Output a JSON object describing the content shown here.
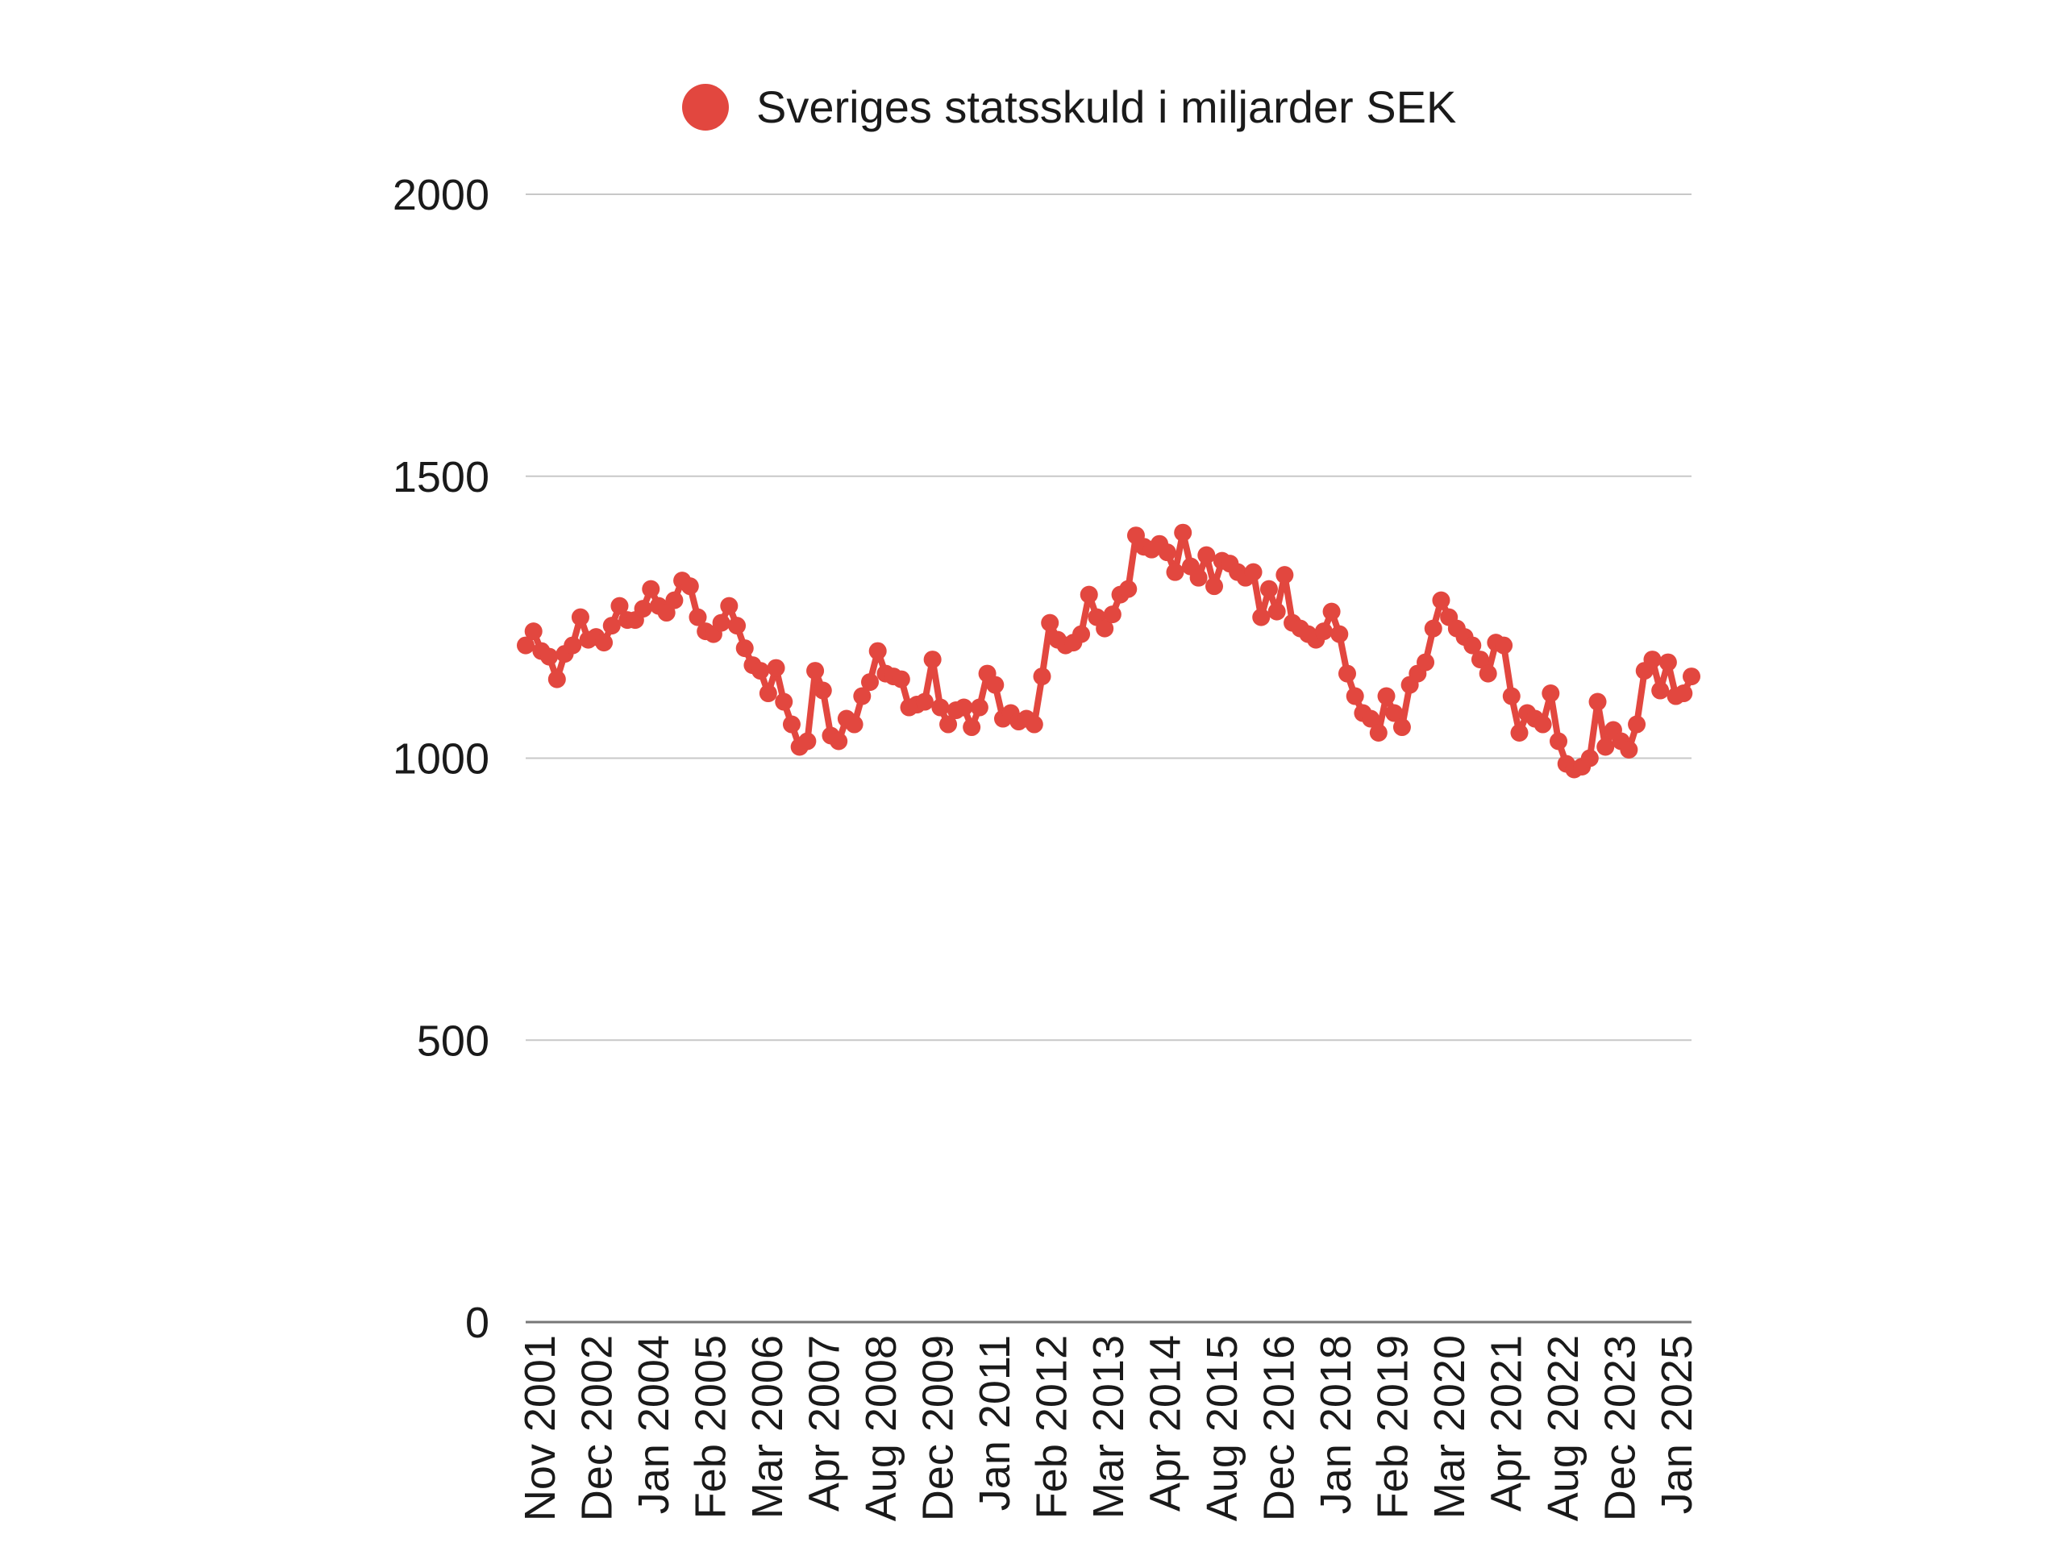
{
  "chart_data": {
    "type": "line",
    "title": "",
    "xlabel": "",
    "ylabel": "",
    "ylim": [
      0,
      2000
    ],
    "y_ticks": [
      0,
      500,
      1000,
      1500,
      2000
    ],
    "grid": true,
    "legend_position": "top",
    "x_tick_labels": [
      "Nov 2001",
      "Dec 2002",
      "Jan 2004",
      "Feb 2005",
      "Mar 2006",
      "Apr 2007",
      "Aug 2008",
      "Dec 2009",
      "Jan 2011",
      "Feb 2012",
      "Mar 2013",
      "Apr 2014",
      "Aug 2015",
      "Dec 2016",
      "Jan 2018",
      "Feb 2019",
      "Mar 2020",
      "Apr 2021",
      "Aug 2022",
      "Dec 2023",
      "Jan 2025"
    ],
    "series": [
      {
        "name": "Sveriges statsskuld i miljarder SEK",
        "color": "#e2473f",
        "values": [
          1200,
          1225,
          1190,
          1180,
          1140,
          1185,
          1200,
          1250,
          1210,
          1215,
          1205,
          1235,
          1270,
          1245,
          1245,
          1265,
          1300,
          1270,
          1258,
          1280,
          1315,
          1305,
          1250,
          1225,
          1220,
          1240,
          1270,
          1235,
          1195,
          1165,
          1155,
          1115,
          1160,
          1100,
          1060,
          1020,
          1030,
          1155,
          1120,
          1040,
          1030,
          1070,
          1060,
          1110,
          1135,
          1190,
          1150,
          1145,
          1140,
          1090,
          1095,
          1100,
          1175,
          1090,
          1060,
          1085,
          1090,
          1055,
          1090,
          1150,
          1130,
          1070,
          1080,
          1065,
          1070,
          1060,
          1145,
          1240,
          1210,
          1200,
          1205,
          1220,
          1290,
          1250,
          1230,
          1255,
          1290,
          1300,
          1395,
          1375,
          1370,
          1380,
          1365,
          1330,
          1400,
          1340,
          1320,
          1360,
          1305,
          1350,
          1345,
          1330,
          1320,
          1330,
          1250,
          1300,
          1260,
          1325,
          1240,
          1230,
          1220,
          1210,
          1225,
          1260,
          1220,
          1150,
          1110,
          1080,
          1070,
          1045,
          1110,
          1080,
          1055,
          1130,
          1150,
          1170,
          1230,
          1280,
          1250,
          1230,
          1215,
          1200,
          1175,
          1150,
          1205,
          1200,
          1110,
          1045,
          1080,
          1070,
          1060,
          1115,
          1030,
          990,
          980,
          985,
          1000,
          1100,
          1020,
          1050,
          1030,
          1015,
          1060,
          1155,
          1175,
          1120,
          1170,
          1110,
          1115,
          1145
        ]
      }
    ]
  }
}
